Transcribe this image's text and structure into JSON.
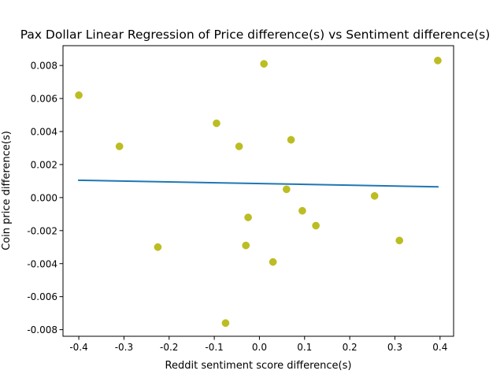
{
  "chart_data": {
    "type": "scatter",
    "title": "Pax Dollar Linear Regression of Price difference(s) vs Sentiment difference(s)",
    "xlabel": "Reddit sentiment score difference(s)",
    "ylabel": "Coin price difference(s)",
    "xlim": [
      -0.435,
      0.43
    ],
    "ylim": [
      -0.0084,
      0.0092
    ],
    "xticks": [
      "-0.4",
      "-0.3",
      "-0.2",
      "-0.1",
      "0.0",
      "0.1",
      "0.2",
      "0.3",
      "0.4"
    ],
    "yticks": [
      "-0.008",
      "-0.006",
      "-0.004",
      "-0.002",
      "0.000",
      "0.002",
      "0.004",
      "0.006",
      "0.008"
    ],
    "grid": false,
    "series": [
      {
        "kind": "scatter",
        "color": "#bcbd22",
        "x": [
          -0.4,
          -0.31,
          -0.225,
          -0.095,
          -0.075,
          -0.045,
          -0.03,
          -0.025,
          0.01,
          0.03,
          0.06,
          0.07,
          0.095,
          0.125,
          0.255,
          0.31,
          0.395
        ],
        "y": [
          0.0062,
          0.0031,
          -0.003,
          0.0045,
          -0.0076,
          0.0031,
          -0.0029,
          -0.0012,
          0.0081,
          -0.0039,
          0.0005,
          0.0035,
          -0.0008,
          -0.0017,
          0.0001,
          -0.0026,
          0.0083
        ]
      },
      {
        "kind": "line",
        "color": "#1f77b4",
        "x": [
          -0.4,
          0.395
        ],
        "y": [
          0.00105,
          0.00065
        ]
      }
    ]
  }
}
